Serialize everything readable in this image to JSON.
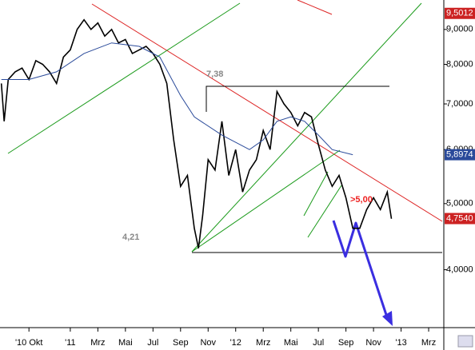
{
  "chart_data": {
    "type": "line",
    "log_y": true,
    "xlim": [
      -5.1,
      27.1
    ],
    "ylim": [
      3.29,
      9.94
    ],
    "xticks": [
      {
        "value": -3,
        "label": "'10 Okt"
      },
      {
        "value": 0,
        "label": "'11"
      },
      {
        "value": 2,
        "label": "Mrz"
      },
      {
        "value": 4,
        "label": "Mai"
      },
      {
        "value": 6,
        "label": "Jul"
      },
      {
        "value": 8,
        "label": "Sep"
      },
      {
        "value": 10,
        "label": "Nov"
      },
      {
        "value": 12,
        "label": "'12"
      },
      {
        "value": 14,
        "label": "Mrz"
      },
      {
        "value": 16,
        "label": "Mai"
      },
      {
        "value": 18,
        "label": "Jul"
      },
      {
        "value": 20,
        "label": "Sep"
      },
      {
        "value": 22,
        "label": "Nov"
      },
      {
        "value": 24,
        "label": "'13"
      },
      {
        "value": 26,
        "label": "Mrz"
      }
    ],
    "yticks": [
      {
        "value": 4,
        "label": "4,0000"
      },
      {
        "value": 5,
        "label": "5,0000"
      },
      {
        "value": 6,
        "label": "6,0000"
      },
      {
        "value": 7,
        "label": "7,0000"
      },
      {
        "value": 8,
        "label": "8,0000"
      },
      {
        "value": 9,
        "label": "9,0000"
      }
    ],
    "series": [
      {
        "color": "#000000",
        "x": [
          -5,
          -4.8,
          -4.5,
          -4,
          -3.5,
          -3,
          -2.5,
          -2,
          -1.5,
          -1,
          -0.5,
          0,
          0.5,
          1,
          1.5,
          2,
          2.5,
          3,
          3.5,
          4,
          4.5,
          5,
          5.5,
          6,
          6.5,
          7,
          7.5,
          8,
          8.5,
          9,
          9.3,
          9.6,
          10,
          10.5,
          11,
          11.5,
          12,
          12.5,
          13,
          13.5,
          14,
          14.5,
          15,
          15.5,
          16,
          16.5,
          17,
          17.5,
          18,
          18.5,
          19,
          19.5,
          20,
          20.5,
          21,
          21.5,
          22,
          22.5,
          23,
          23.3
        ],
        "values": [
          7.5,
          6.6,
          7.6,
          7.8,
          7.9,
          7.6,
          8.1,
          8.0,
          7.8,
          7.5,
          8.2,
          8.4,
          9.0,
          9.3,
          9.0,
          9.2,
          8.8,
          9.0,
          8.6,
          8.7,
          8.3,
          8.4,
          8.5,
          8.3,
          8.0,
          7.5,
          6.2,
          5.3,
          5.5,
          4.6,
          4.3,
          4.8,
          5.8,
          5.6,
          6.6,
          5.5,
          6.0,
          5.2,
          5.6,
          5.8,
          6.4,
          6.0,
          7.3,
          7.0,
          6.8,
          6.5,
          6.8,
          6.7,
          6.1,
          5.6,
          5.3,
          5.5,
          5.1,
          4.6,
          4.6,
          4.9,
          5.1,
          4.9,
          5.2,
          4.75
        ]
      },
      {
        "color": "#2a4a9a",
        "x": [
          -5,
          -3,
          -1,
          1,
          3,
          5,
          6.5,
          8,
          9,
          11,
          13,
          14,
          15,
          16,
          17,
          18,
          19,
          20.5
        ],
        "values": [
          7.6,
          7.6,
          7.8,
          8.3,
          8.6,
          8.5,
          8.2,
          7.2,
          6.7,
          6.3,
          6.0,
          6.2,
          6.6,
          6.7,
          6.6,
          6.3,
          6.0,
          5.8974
        ]
      }
    ],
    "price_markers": [
      {
        "value": 9.5012,
        "label": "9,5012",
        "color": "#cc2222"
      },
      {
        "value": 5.8974,
        "label": "5,8974",
        "color": "#2a4a9a"
      },
      {
        "value": 4.754,
        "label": "4,7540",
        "color": "#cc2222"
      }
    ],
    "annotations": [
      ">5,00",
      "7,38",
      "4,21"
    ]
  }
}
